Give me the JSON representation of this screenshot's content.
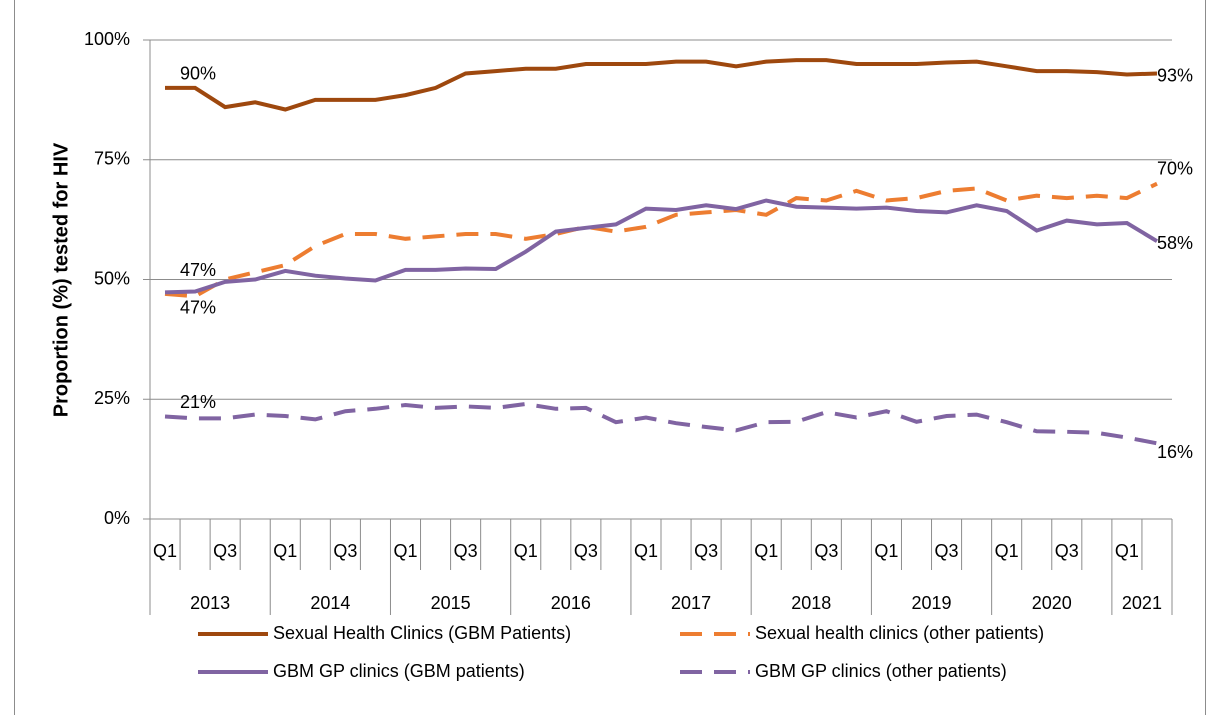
{
  "chart_data": {
    "type": "line",
    "y_label": "Proportion (%) tested for HIV",
    "categories": [
      "Q1",
      null,
      "Q3",
      null,
      "Q1",
      null,
      "Q3",
      null,
      "Q1",
      null,
      "Q3",
      null,
      "Q1",
      null,
      "Q3",
      null,
      "Q1",
      null,
      "Q3",
      null,
      "Q1",
      null,
      "Q3",
      null,
      "Q1",
      null,
      "Q3",
      null,
      "Q1",
      null,
      "Q3",
      null,
      "Q1",
      null
    ],
    "years": [
      "2013",
      "2014",
      "2015",
      "2016",
      "2017",
      "2018",
      "2019",
      "2020",
      "2021"
    ],
    "ylim": [
      0,
      100
    ],
    "yticks": [
      {
        "value": 0,
        "label": "0%"
      },
      {
        "value": 25,
        "label": "25%"
      },
      {
        "value": 50,
        "label": "50%"
      },
      {
        "value": 75,
        "label": "75%"
      },
      {
        "value": 100,
        "label": "100%"
      }
    ],
    "grid": true,
    "series": [
      {
        "name": "Sexual Health Clinics (GBM Patients)",
        "color": "#9e480e",
        "dashed": false,
        "values": [
          90,
          90,
          86,
          87,
          85.5,
          87.5,
          87.5,
          87.5,
          88.5,
          90,
          93,
          93.5,
          94,
          94,
          95,
          95,
          95,
          95.5,
          95.5,
          94.5,
          95.5,
          95.8,
          95.8,
          95,
          95,
          95,
          95.3,
          95.5,
          94.5,
          93.5,
          93.5,
          93.3,
          92.8,
          93
        ],
        "value_labels": [
          "90%",
          null,
          null,
          null,
          null,
          null,
          null,
          null,
          null,
          null,
          null,
          null,
          null,
          null,
          null,
          null,
          null,
          null,
          null,
          null,
          null,
          null,
          null,
          null,
          null,
          null,
          null,
          null,
          null,
          null,
          null,
          null,
          null,
          "93%"
        ]
      },
      {
        "name": "Sexual health clinics (other patients)",
        "color": "#ed7d31",
        "dashed": true,
        "values": [
          47,
          46.5,
          50,
          51.5,
          53,
          57,
          59.5,
          59.5,
          58.5,
          59,
          59.5,
          59.5,
          58.5,
          59.5,
          61,
          60,
          61,
          63.5,
          64,
          64.5,
          63.5,
          67,
          66.5,
          68.5,
          66.5,
          67,
          68.5,
          69,
          66.5,
          67.5,
          67,
          67.5,
          67,
          70
        ],
        "value_labels": [
          "47%",
          null,
          null,
          null,
          null,
          null,
          null,
          null,
          null,
          null,
          null,
          null,
          null,
          null,
          null,
          null,
          null,
          null,
          null,
          null,
          null,
          null,
          null,
          null,
          null,
          null,
          null,
          null,
          null,
          null,
          null,
          null,
          null,
          "70%"
        ]
      },
      {
        "name": "GBM GP clinics (GBM patients)",
        "color": "#8064a2",
        "dashed": false,
        "values": [
          47.3,
          47.5,
          49.5,
          50,
          51.8,
          50.8,
          50.2,
          49.8,
          52,
          52,
          52.3,
          52.2,
          55.8,
          60,
          60.8,
          61.5,
          64.8,
          64.5,
          65.5,
          64.7,
          66.5,
          65.2,
          65,
          64.8,
          65,
          64.3,
          64,
          65.5,
          64.3,
          60.2,
          62.3,
          61.5,
          61.8,
          58
        ],
        "value_labels": [
          "47%",
          null,
          null,
          null,
          null,
          null,
          null,
          null,
          null,
          null,
          null,
          null,
          null,
          null,
          null,
          null,
          null,
          null,
          null,
          null,
          null,
          null,
          null,
          null,
          null,
          null,
          null,
          null,
          null,
          null,
          null,
          null,
          null,
          "58%"
        ]
      },
      {
        "name": "GBM GP clinics (other patients)",
        "color": "#8064a2",
        "dashed": true,
        "values": [
          21.4,
          21,
          21,
          21.8,
          21.5,
          20.8,
          22.5,
          23,
          23.8,
          23.2,
          23.5,
          23.2,
          24,
          23,
          23.2,
          20.2,
          21.2,
          20,
          19.2,
          18.5,
          20.2,
          20.3,
          22.3,
          21.2,
          22.5,
          20.3,
          21.5,
          21.8,
          20.2,
          18.3,
          18.2,
          18,
          17,
          15.8
        ],
        "value_labels": [
          "21%",
          null,
          null,
          null,
          null,
          null,
          null,
          null,
          null,
          null,
          null,
          null,
          null,
          null,
          null,
          null,
          null,
          null,
          null,
          null,
          null,
          null,
          null,
          null,
          null,
          null,
          null,
          null,
          null,
          null,
          null,
          null,
          null,
          "16%"
        ]
      }
    ]
  }
}
